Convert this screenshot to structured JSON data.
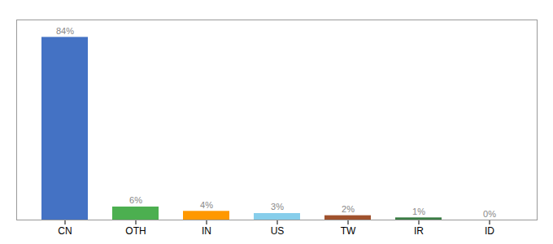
{
  "chart_data": {
    "type": "bar",
    "categories": [
      "CN",
      "OTH",
      "IN",
      "US",
      "TW",
      "IR",
      "ID"
    ],
    "values": [
      84,
      6,
      4,
      3,
      2,
      1,
      0
    ],
    "value_labels": [
      "84%",
      "6%",
      "4%",
      "3%",
      "2%",
      "1%",
      "0%"
    ],
    "colors": [
      "#4472c4",
      "#4caf50",
      "#ff9800",
      "#87ceeb",
      "#a0522d",
      "#3a7d44",
      "#cccccc"
    ],
    "ylim": [
      0,
      92
    ],
    "yticks": [],
    "grid": false,
    "data_labels": true,
    "tick_labels": "x"
  }
}
